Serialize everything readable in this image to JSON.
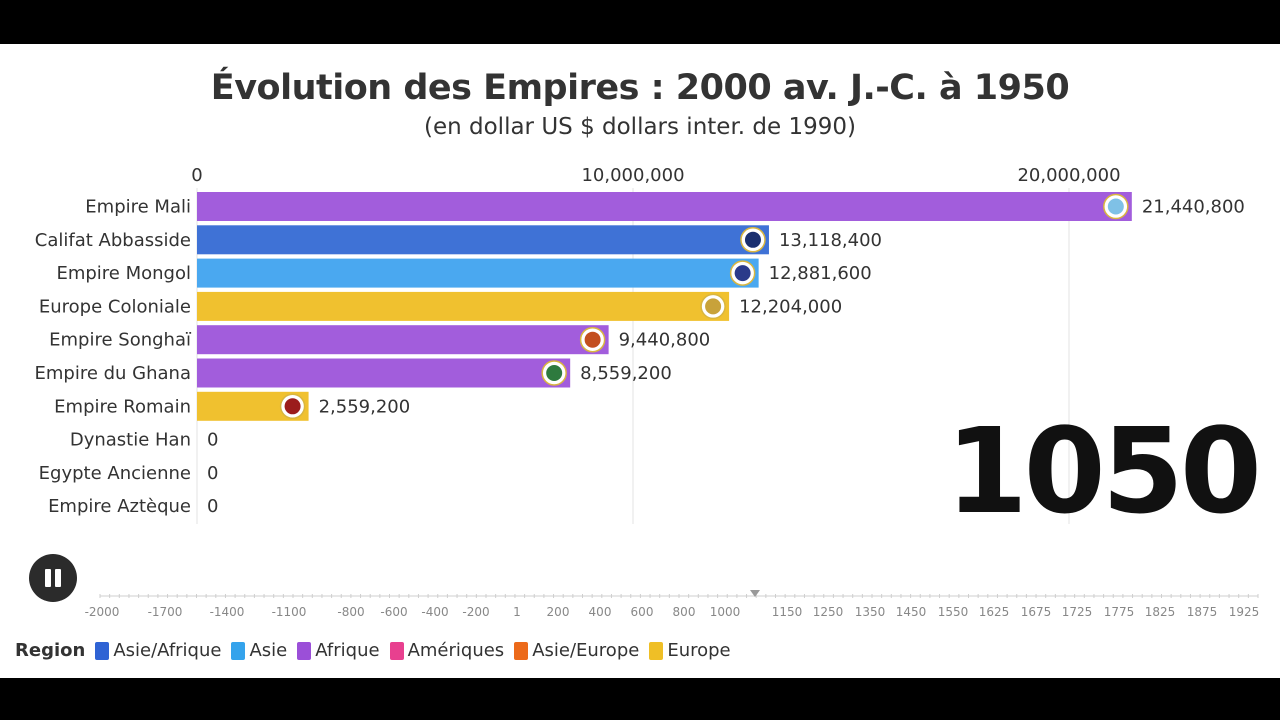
{
  "chart_data": {
    "type": "bar",
    "title": "Évolution des Empires : 2000 av. J.-C. à 1950",
    "subtitle": "(en dollar US $ dollars inter. de 1990)",
    "current_year": "1050",
    "x_ticks": [
      "0",
      "10,000,000",
      "20,000,000"
    ],
    "x_tick_values": [
      0,
      10000000,
      20000000
    ],
    "xlim": [
      0,
      22500000
    ],
    "categories": [
      "Empire Mali",
      "Califat Abbasside",
      "Empire Mongol",
      "Europe Coloniale",
      "Empire Songhaï",
      "Empire du Ghana",
      "Empire Romain",
      "Dynastie Han",
      "Egypte Ancienne",
      "Empire Aztèque"
    ],
    "values": [
      21440800,
      13118400,
      12881600,
      12204000,
      9440800,
      8559200,
      2559200,
      0,
      0,
      0
    ],
    "value_labels": [
      "21,440,800",
      "13,118,400",
      "12,881,600",
      "12,204,000",
      "9,440,800",
      "8,559,200",
      "2,559,200",
      "0",
      "0",
      "0"
    ],
    "bar_colors": [
      "#a25ddc",
      "#3f72d6",
      "#4aa8f0",
      "#f0c12f",
      "#a25ddc",
      "#a25ddc",
      "#f0c12f",
      "#a25ddc",
      "#a25ddc",
      "#a25ddc"
    ],
    "icons": [
      "globe-icon",
      "calligraphy-emblem-icon",
      "mongol-emblem-icon",
      "coat-of-arms-icon",
      "songhai-emblem-icon",
      "ghana-emblem-icon",
      "spqr-icon",
      "",
      "",
      ""
    ],
    "grid": true,
    "timeline_ticks": [
      "-2000",
      "-1700",
      "-1400",
      "-1100",
      "-800",
      "-600",
      "-400",
      "-200",
      "1",
      "200",
      "400",
      "600",
      "800",
      "1000",
      "1150",
      "1250",
      "1350",
      "1450",
      "1550",
      "1625",
      "1675",
      "1725",
      "1775",
      "1825",
      "1875",
      "1925"
    ],
    "legend_title": "Region",
    "legend": [
      {
        "name": "Asie/Afrique",
        "color": "#2f63d4"
      },
      {
        "name": "Asie",
        "color": "#34a3ec"
      },
      {
        "name": "Afrique",
        "color": "#9b4fd8"
      },
      {
        "name": "Amériques",
        "color": "#e8408f"
      },
      {
        "name": "Asie/Europe",
        "color": "#ec6a1a"
      },
      {
        "name": "Europe",
        "color": "#efbf26"
      }
    ]
  }
}
